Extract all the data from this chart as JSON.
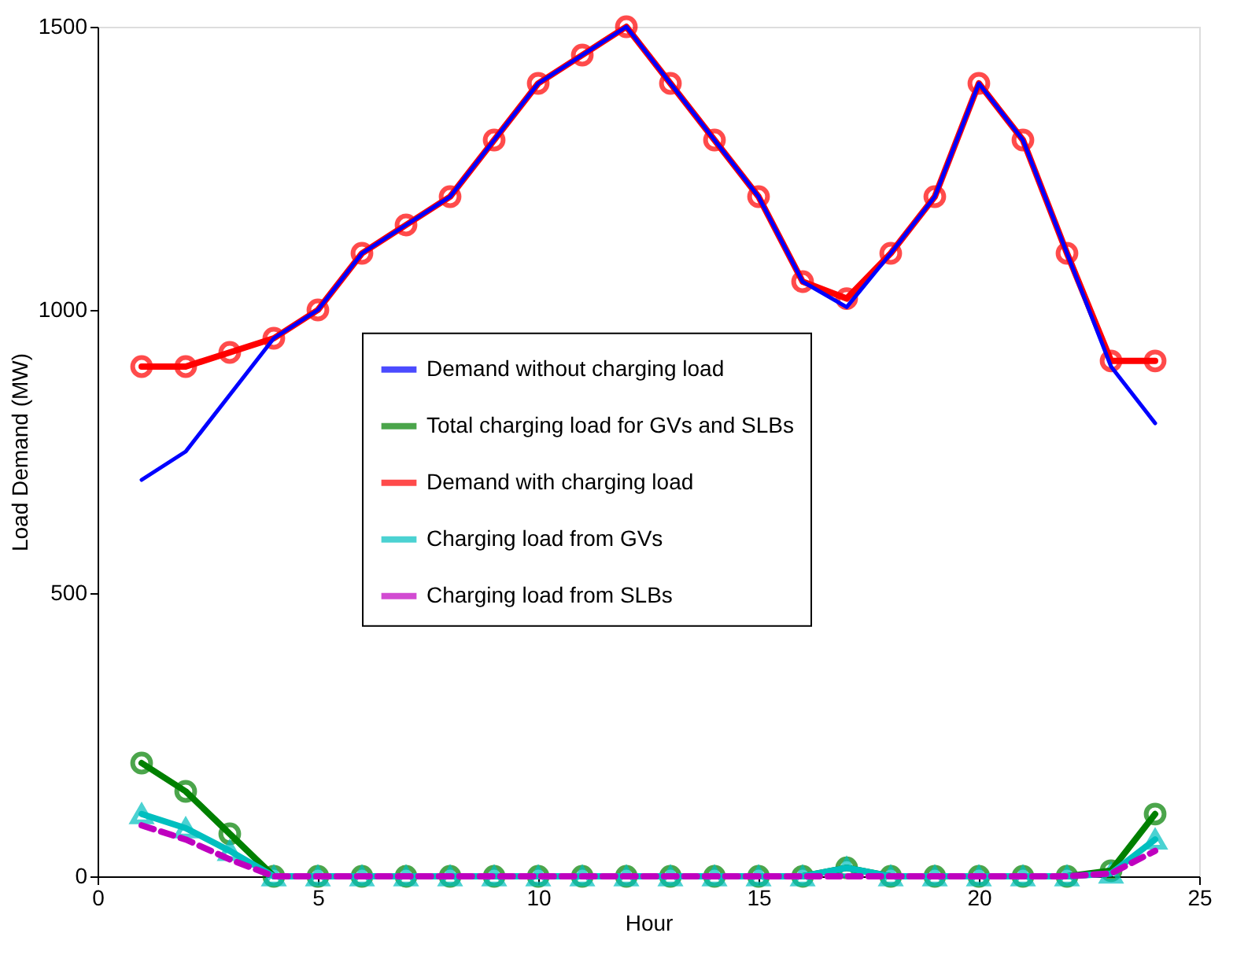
{
  "chart_data": {
    "type": "line",
    "xlabel": "Hour",
    "ylabel": "Load Demand (MW)",
    "x": [
      1,
      2,
      3,
      4,
      5,
      6,
      7,
      8,
      9,
      10,
      11,
      12,
      13,
      14,
      15,
      16,
      17,
      18,
      19,
      20,
      21,
      22,
      23,
      24
    ],
    "series": [
      {
        "name": "Demand without charging load",
        "color": "#0000ff",
        "marker": "none",
        "line_style": "solid",
        "values": [
          700,
          750,
          850,
          950,
          1000,
          1100,
          1150,
          1200,
          1300,
          1400,
          1450,
          1500,
          1400,
          1300,
          1200,
          1050,
          1005,
          1100,
          1200,
          1400,
          1300,
          1100,
          900,
          800
        ]
      },
      {
        "name": "Total charging load for GVs and SLBs",
        "color": "#008000",
        "marker": "circle",
        "line_style": "solid",
        "values": [
          200,
          150,
          75,
          0,
          0,
          0,
          0,
          0,
          0,
          0,
          0,
          0,
          0,
          0,
          0,
          0,
          15,
          0,
          0,
          0,
          0,
          0,
          10,
          110
        ]
      },
      {
        "name": "Demand with charging load",
        "color": "#ff0000",
        "marker": "circle",
        "line_style": "solid",
        "values": [
          900,
          900,
          925,
          950,
          1000,
          1100,
          1150,
          1200,
          1300,
          1400,
          1450,
          1500,
          1400,
          1300,
          1200,
          1050,
          1020,
          1100,
          1200,
          1400,
          1300,
          1100,
          910,
          910
        ]
      },
      {
        "name": "Charging load from GVs",
        "color": "#00bfbf",
        "marker": "triangle",
        "line_style": "solid",
        "values": [
          110,
          85,
          45,
          0,
          0,
          0,
          0,
          0,
          0,
          0,
          0,
          0,
          0,
          0,
          0,
          0,
          15,
          0,
          0,
          0,
          0,
          0,
          5,
          65
        ]
      },
      {
        "name": "Charging load from SLBs",
        "color": "#bf00bf",
        "marker": "none",
        "line_style": "dashed",
        "values": [
          90,
          65,
          30,
          0,
          0,
          0,
          0,
          0,
          0,
          0,
          0,
          0,
          0,
          0,
          0,
          0,
          0,
          0,
          0,
          0,
          0,
          0,
          5,
          45
        ]
      }
    ],
    "xlim": [
      0,
      25
    ],
    "xticks": [
      0,
      5,
      10,
      15,
      20,
      25
    ],
    "ylim": [
      0,
      1500
    ],
    "yticks": [
      0,
      500,
      1000,
      1500
    ],
    "grid": false,
    "legend": "center"
  }
}
